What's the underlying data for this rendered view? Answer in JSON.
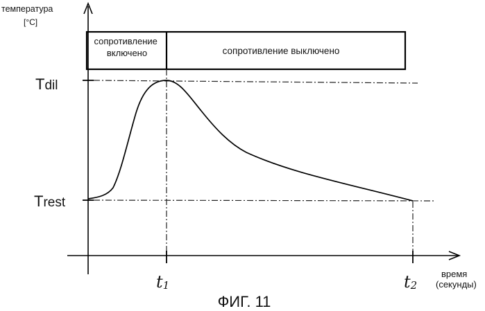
{
  "y_axis": {
    "label_line1": "температура",
    "label_line2": "[°C]"
  },
  "x_axis": {
    "label_line1": "время",
    "label_line2": "(секунды)"
  },
  "levels": {
    "t_dil": {
      "main": "T",
      "sub": "dil"
    },
    "t_rest": {
      "main": "T",
      "sub": "rest"
    }
  },
  "times": {
    "t1": {
      "main": "t",
      "sub": "1"
    },
    "t2": {
      "main": "t",
      "sub": "2"
    }
  },
  "phases": {
    "on_line1": "сопротивление",
    "on_line2": "включено",
    "off": "сопротивление выключено"
  },
  "caption": "ФИГ. 11"
}
